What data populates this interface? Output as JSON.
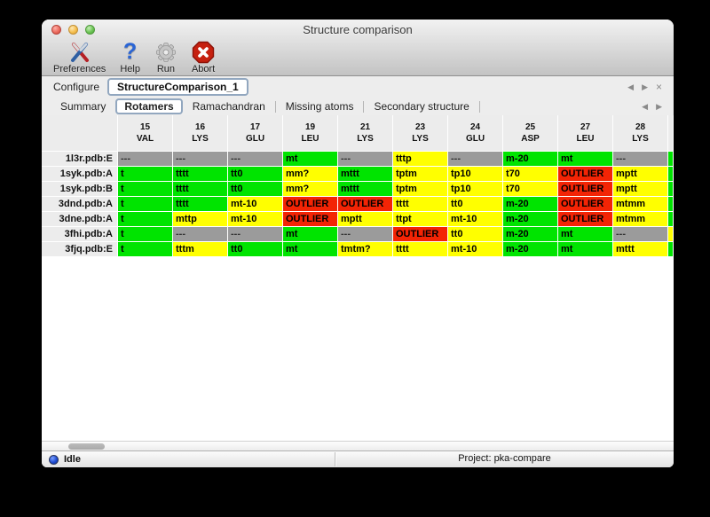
{
  "window": {
    "title": "Structure comparison"
  },
  "toolbar": {
    "items": [
      {
        "label": "Preferences",
        "icon": "preferences-tools-icon"
      },
      {
        "label": "Help",
        "icon": "help-question-icon"
      },
      {
        "label": "Run",
        "icon": "run-gear-icon"
      },
      {
        "label": "Abort",
        "icon": "abort-stop-icon"
      }
    ]
  },
  "configure": {
    "label": "Configure",
    "value": "StructureComparison_1"
  },
  "tabs": {
    "items": [
      "Summary",
      "Rotamers",
      "Ramachandran",
      "Missing atoms",
      "Secondary structure"
    ],
    "selected": "Rotamers"
  },
  "icons": {
    "scroll_left": "◀",
    "scroll_right": "▶",
    "close": "×"
  },
  "colors": {
    "g": "#00e400",
    "y": "#ffff00",
    "r": "#f32405",
    "m": "#9b9b9b"
  },
  "table": {
    "columns": [
      {
        "num": "15",
        "res": "VAL"
      },
      {
        "num": "16",
        "res": "LYS"
      },
      {
        "num": "17",
        "res": "GLU"
      },
      {
        "num": "19",
        "res": "LEU"
      },
      {
        "num": "21",
        "res": "LYS"
      },
      {
        "num": "23",
        "res": "LYS"
      },
      {
        "num": "24",
        "res": "GLU"
      },
      {
        "num": "25",
        "res": "ASP"
      },
      {
        "num": "27",
        "res": "LEU"
      },
      {
        "num": "28",
        "res": "LYS"
      }
    ],
    "rows": [
      {
        "label": "1l3r.pdb:E",
        "sliver": "g",
        "cells": [
          [
            "m",
            "---"
          ],
          [
            "m",
            "---"
          ],
          [
            "m",
            "---"
          ],
          [
            "g",
            "mt"
          ],
          [
            "m",
            "---"
          ],
          [
            "y",
            "tttp"
          ],
          [
            "m",
            "---"
          ],
          [
            "g",
            "m-20"
          ],
          [
            "g",
            "mt"
          ],
          [
            "m",
            "---"
          ]
        ]
      },
      {
        "label": "1syk.pdb:A",
        "sliver": "g",
        "cells": [
          [
            "g",
            "t"
          ],
          [
            "g",
            "tttt"
          ],
          [
            "g",
            "tt0"
          ],
          [
            "y",
            "mm?"
          ],
          [
            "g",
            "mttt"
          ],
          [
            "y",
            "tptm"
          ],
          [
            "y",
            "tp10"
          ],
          [
            "y",
            "t70"
          ],
          [
            "r",
            "OUTLIER"
          ],
          [
            "y",
            "mptt"
          ]
        ]
      },
      {
        "label": "1syk.pdb:B",
        "sliver": "g",
        "cells": [
          [
            "g",
            "t"
          ],
          [
            "g",
            "tttt"
          ],
          [
            "g",
            "tt0"
          ],
          [
            "y",
            "mm?"
          ],
          [
            "g",
            "mttt"
          ],
          [
            "y",
            "tptm"
          ],
          [
            "y",
            "tp10"
          ],
          [
            "y",
            "t70"
          ],
          [
            "r",
            "OUTLIER"
          ],
          [
            "y",
            "mptt"
          ]
        ]
      },
      {
        "label": "3dnd.pdb:A",
        "sliver": "g",
        "cells": [
          [
            "g",
            "t"
          ],
          [
            "g",
            "tttt"
          ],
          [
            "y",
            "mt-10"
          ],
          [
            "r",
            "OUTLIER"
          ],
          [
            "r",
            "OUTLIER"
          ],
          [
            "y",
            "tttt"
          ],
          [
            "y",
            "tt0"
          ],
          [
            "g",
            "m-20"
          ],
          [
            "r",
            "OUTLIER"
          ],
          [
            "y",
            "mtmm"
          ]
        ]
      },
      {
        "label": "3dne.pdb:A",
        "sliver": "g",
        "cells": [
          [
            "g",
            "t"
          ],
          [
            "y",
            "mttp"
          ],
          [
            "y",
            "mt-10"
          ],
          [
            "r",
            "OUTLIER"
          ],
          [
            "y",
            "mptt"
          ],
          [
            "y",
            "ttpt"
          ],
          [
            "y",
            "mt-10"
          ],
          [
            "g",
            "m-20"
          ],
          [
            "r",
            "OUTLIER"
          ],
          [
            "y",
            "mtmm"
          ]
        ]
      },
      {
        "label": "3fhi.pdb:A",
        "sliver": "y",
        "cells": [
          [
            "g",
            "t"
          ],
          [
            "m",
            "---"
          ],
          [
            "m",
            "---"
          ],
          [
            "g",
            "mt"
          ],
          [
            "m",
            "---"
          ],
          [
            "r",
            "OUTLIER"
          ],
          [
            "y",
            "tt0"
          ],
          [
            "g",
            "m-20"
          ],
          [
            "g",
            "mt"
          ],
          [
            "m",
            "---"
          ]
        ]
      },
      {
        "label": "3fjq.pdb:E",
        "sliver": "g",
        "cells": [
          [
            "g",
            "t"
          ],
          [
            "y",
            "tttm"
          ],
          [
            "g",
            "tt0"
          ],
          [
            "g",
            "mt"
          ],
          [
            "y",
            "tmtm?"
          ],
          [
            "y",
            "tttt"
          ],
          [
            "y",
            "mt-10"
          ],
          [
            "g",
            "m-20"
          ],
          [
            "g",
            "mt"
          ],
          [
            "y",
            "mttt"
          ]
        ]
      }
    ]
  },
  "statusbar": {
    "status": "Idle",
    "project": "Project: pka-compare"
  }
}
